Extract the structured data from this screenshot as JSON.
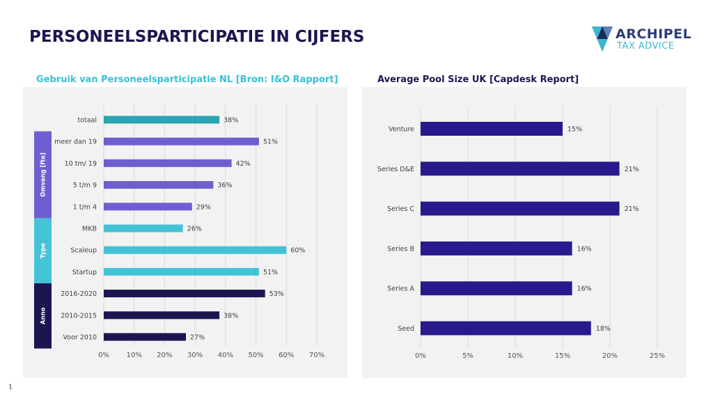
{
  "slide": {
    "title": "PERSONEELSPARTICIPATIE IN CIJFERS",
    "page_number": "1",
    "logo": {
      "word": "ARCHIPEL",
      "subtitle": "TAX ADVICE",
      "icon": "archipel-triangle-logo"
    }
  },
  "colors": {
    "title": "#1c1650",
    "teal": "#2aa5b0",
    "purple": "#6e5fd0",
    "cyan": "#45c3d6",
    "navy": "#1c1650",
    "indigo": "#261a8c",
    "left_title": "#37c0d4"
  },
  "chart_data": [
    {
      "type": "bar",
      "orientation": "horizontal",
      "title": "Gebruik van Personeelsparticipatie  NL [Bron: I&O Rapport]",
      "categories": [
        "totaal",
        "meer dan 19",
        "10 tm/ 19",
        "5 t/m 9",
        "1 t/m 4",
        "MKB",
        "Scaleup",
        "Startup",
        "2016-2020",
        "2010-2015",
        "Voor 2010"
      ],
      "values": [
        38,
        51,
        42,
        36,
        29,
        26,
        60,
        51,
        53,
        38,
        27
      ],
      "value_labels": [
        "38%",
        "51%",
        "42%",
        "36%",
        "29%",
        "26%",
        "60%",
        "51%",
        "53%",
        "38%",
        "27%"
      ],
      "bar_colors": [
        "#2aa5b0",
        "#6e5fd0",
        "#6e5fd0",
        "#6e5fd0",
        "#6e5fd0",
        "#45c3d6",
        "#45c3d6",
        "#45c3d6",
        "#1c1650",
        "#1c1650",
        "#1c1650"
      ],
      "groups": [
        {
          "label": "Omvang [fte]",
          "start": 1,
          "end": 4,
          "color": "#6e5fd0"
        },
        {
          "label": "Type",
          "start": 5,
          "end": 7,
          "color": "#45c3d6"
        },
        {
          "label": "Anno",
          "start": 8,
          "end": 10,
          "color": "#1c1650"
        }
      ],
      "xlim": [
        0,
        70
      ],
      "xticks": [
        0,
        10,
        20,
        30,
        40,
        50,
        60,
        70
      ],
      "xtick_labels": [
        "0%",
        "10%",
        "20%",
        "30%",
        "40%",
        "50%",
        "60%",
        "70%"
      ],
      "grid": true
    },
    {
      "type": "bar",
      "orientation": "horizontal",
      "title": "Average Pool Size UK [Capdesk Report]",
      "categories": [
        "Venture",
        "Series D&E",
        "Series C",
        "Series B",
        "Series A",
        "Seed"
      ],
      "values": [
        15,
        21,
        21,
        16,
        16,
        18
      ],
      "value_labels": [
        "15%",
        "21%",
        "21%",
        "16%",
        "16%",
        "18%"
      ],
      "bar_color": "#261a8c",
      "xlim": [
        0,
        25
      ],
      "xticks": [
        0,
        5,
        10,
        15,
        20,
        25
      ],
      "xtick_labels": [
        "0%",
        "5%",
        "10%",
        "15%",
        "20%",
        "25%"
      ],
      "grid": true
    }
  ]
}
